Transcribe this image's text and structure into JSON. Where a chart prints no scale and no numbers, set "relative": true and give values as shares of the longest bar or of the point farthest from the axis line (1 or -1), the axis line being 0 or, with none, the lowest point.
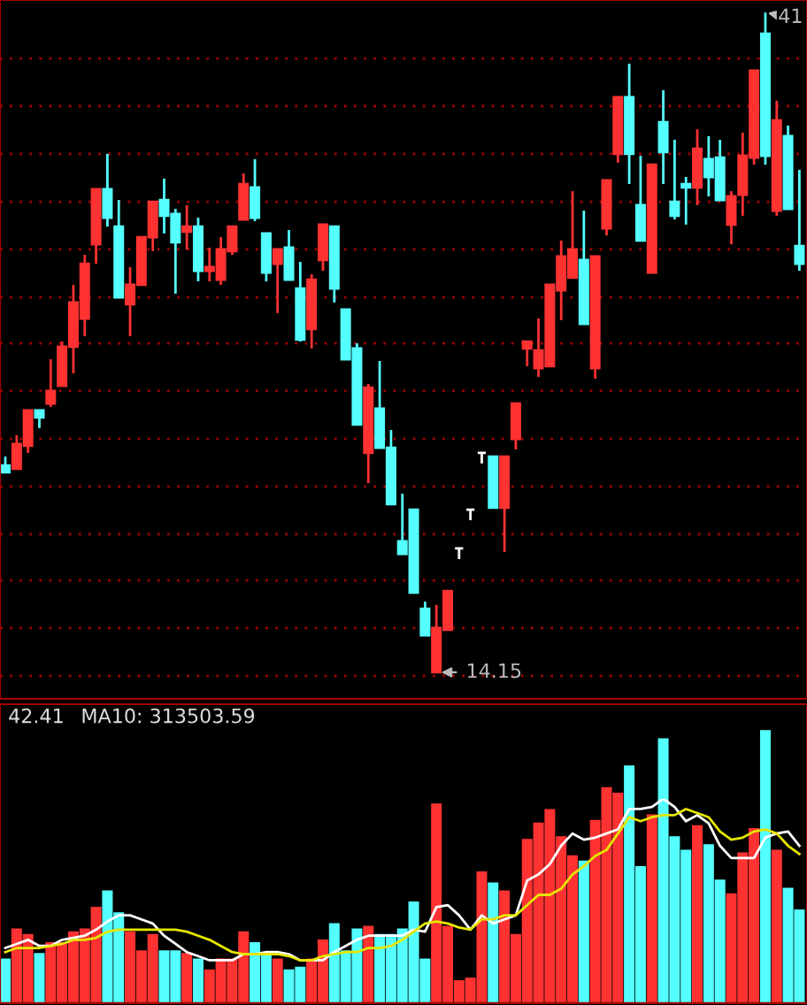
{
  "chart_data": [
    {
      "type": "candlestick",
      "categories": [
        null,
        null,
        null,
        null,
        null,
        null,
        null,
        null,
        null,
        null,
        null,
        null,
        null,
        null,
        null,
        null,
        null,
        null,
        null,
        null,
        null,
        null,
        null,
        null,
        null,
        null,
        null,
        null,
        null,
        null,
        null,
        null,
        null,
        null,
        null,
        null,
        null,
        null,
        null,
        null,
        null,
        null,
        null,
        null,
        null,
        null,
        null,
        null,
        null,
        null,
        null,
        null,
        null,
        null,
        null,
        null,
        null,
        null,
        null,
        null,
        null,
        null,
        null,
        null,
        null,
        null,
        null,
        null,
        null,
        null,
        null
      ],
      "ohlc": [
        [
          22.57,
          22.93,
          22.29,
          22.29
        ],
        [
          22.43,
          23.8,
          22.43,
          23.44
        ],
        [
          23.37,
          24.81,
          23.08,
          24.81
        ],
        [
          24.81,
          24.81,
          24.09,
          24.52
        ],
        [
          25.09,
          26.89,
          24.95,
          25.6
        ],
        [
          25.81,
          27.61,
          25.81,
          27.4
        ],
        [
          27.4,
          29.92,
          26.32,
          29.2
        ],
        [
          28.55,
          31.14,
          27.83,
          30.78
        ],
        [
          31.57,
          33.81,
          30.78,
          33.81
        ],
        [
          33.81,
          35.25,
          32.29,
          32.65
        ],
        [
          32.29,
          33.37,
          29.41,
          29.41
        ],
        [
          29.13,
          30.64,
          27.83,
          29.92
        ],
        [
          29.92,
          31.86,
          29.92,
          31.86
        ],
        [
          31.86,
          33.3,
          31.29,
          33.3
        ],
        [
          33.37,
          34.24,
          32.01,
          32.73
        ],
        [
          32.8,
          33.01,
          29.56,
          31.65
        ],
        [
          32.08,
          33.16,
          31.36,
          32.29
        ],
        [
          32.29,
          32.65,
          30.06,
          30.49
        ],
        [
          30.49,
          31.43,
          30.06,
          30.64
        ],
        [
          30.13,
          31.86,
          29.92,
          31.36
        ],
        [
          31.29,
          32.29,
          31.14,
          32.29
        ],
        [
          32.58,
          34.45,
          32.58,
          34.02
        ],
        [
          33.88,
          35.03,
          32.51,
          32.65
        ],
        [
          32.01,
          32.01,
          30.06,
          30.42
        ],
        [
          30.78,
          31.36,
          28.77,
          31.36
        ],
        [
          31.43,
          32.15,
          30.13,
          30.13
        ],
        [
          29.77,
          30.85,
          27.61,
          27.69
        ],
        [
          28.12,
          30.35,
          27.33,
          30.13
        ],
        [
          30.93,
          32.37,
          30.49,
          32.37
        ],
        [
          32.29,
          32.29,
          29.2,
          29.77
        ],
        [
          28.91,
          28.91,
          26.89,
          26.89
        ],
        [
          27.33,
          27.54,
          24.23,
          24.23
        ],
        [
          23.08,
          25.89,
          21.85,
          25.74
        ],
        [
          24.88,
          26.82,
          23.29,
          23.29
        ],
        [
          23.29,
          24.01,
          20.99,
          20.99
        ],
        [
          19.48,
          21.42,
          18.97,
          18.97
        ],
        [
          20.77,
          20.77,
          17.39,
          17.39
        ],
        [
          16.74,
          17.03,
          15.66,
          15.66
        ],
        [
          14.15,
          16.89,
          14.15,
          15.95
        ],
        [
          15.88,
          17.46,
          15.88,
          17.46
        ],
        [
          19.19,
          19.19,
          18.76,
          19.19
        ],
        [
          20.77,
          20.77,
          20.34,
          20.77
        ],
        [
          23.08,
          23.08,
          22.65,
          23.08
        ],
        [
          22.93,
          22.93,
          20.85,
          20.85
        ],
        [
          20.85,
          22.93,
          19.05,
          22.93
        ],
        [
          23.65,
          25.09,
          23.22,
          25.09
        ],
        [
          27.33,
          27.61,
          26.61,
          27.61
        ],
        [
          26.53,
          28.55,
          26.17,
          27.25
        ],
        [
          26.61,
          29.92,
          26.61,
          29.92
        ],
        [
          29.7,
          31.72,
          28.48,
          31.07
        ],
        [
          30.21,
          33.73,
          30.21,
          31.36
        ],
        [
          30.93,
          32.94,
          28.33,
          28.33
        ],
        [
          26.53,
          31.07,
          26.1,
          31.07
        ],
        [
          32.22,
          34.17,
          31.93,
          34.17
        ],
        [
          35.25,
          37.55,
          34.89,
          37.55
        ],
        [
          37.55,
          38.92,
          34.02,
          35.25
        ],
        [
          33.16,
          35.17,
          31.72,
          31.72
        ],
        [
          30.42,
          34.81,
          30.42,
          34.81
        ],
        [
          36.54,
          37.84,
          34.02,
          35.32
        ],
        [
          33.3,
          35.82,
          32.58,
          32.73
        ],
        [
          34.02,
          34.31,
          32.37,
          33.88
        ],
        [
          33.88,
          36.25,
          33.16,
          35.46
        ],
        [
          35.03,
          35.97,
          33.52,
          34.31
        ],
        [
          35.1,
          35.82,
          33.37,
          33.37
        ],
        [
          32.37,
          33.73,
          31.57,
          33.52
        ],
        [
          33.59,
          36.11,
          32.73,
          35.17
        ],
        [
          35.1,
          38.63,
          34.81,
          38.63
        ],
        [
          40.14,
          41.0,
          34.81,
          35.17
        ],
        [
          32.94,
          37.41,
          32.73,
          36.61
        ],
        [
          35.97,
          36.4,
          33.01,
          33.01
        ],
        [
          31.5,
          34.6,
          30.49,
          30.78
        ]
      ],
      "colors": [
        "#54ffff",
        "#ff3232",
        "#ff3232",
        "#54ffff",
        "#ff3232",
        "#ff3232",
        "#ff3232",
        "#ff3232",
        "#ff3232",
        "#54ffff",
        "#54ffff",
        "#ff3232",
        "#ff3232",
        "#ff3232",
        "#54ffff",
        "#54ffff",
        "#ff3232",
        "#54ffff",
        "#ff3232",
        "#ff3232",
        "#ff3232",
        "#ff3232",
        "#54ffff",
        "#54ffff",
        "#ff3232",
        "#54ffff",
        "#54ffff",
        "#ff3232",
        "#ff3232",
        "#54ffff",
        "#54ffff",
        "#54ffff",
        "#ff3232",
        "#54ffff",
        "#54ffff",
        "#54ffff",
        "#54ffff",
        "#54ffff",
        "#ff3232",
        "#ff3232",
        "#ffffff",
        "#ffffff",
        "#ffffff",
        "#54ffff",
        "#ff3232",
        "#ff3232",
        "#ff3232",
        "#ff3232",
        "#ff3232",
        "#ff3232",
        "#ff3232",
        "#54ffff",
        "#ff3232",
        "#ff3232",
        "#ff3232",
        "#54ffff",
        "#54ffff",
        "#ff3232",
        "#54ffff",
        "#54ffff",
        "#54ffff",
        "#ff3232",
        "#54ffff",
        "#54ffff",
        "#ff3232",
        "#ff3232",
        "#ff3232",
        "#54ffff",
        "#ff3232",
        "#54ffff",
        "#54ffff"
      ],
      "ylim": [
        13.07,
        41.51
      ],
      "yticks": [
        {
          "value": 39.13,
          "label": null
        },
        {
          "value": 37.19,
          "label": null
        },
        {
          "value": 35.25,
          "label": null
        },
        {
          "value": 33.3,
          "label": null
        },
        {
          "value": 31.36,
          "label": null
        },
        {
          "value": 29.41,
          "label": null
        },
        {
          "value": 27.54,
          "label": null
        },
        {
          "value": 25.6,
          "label": null
        },
        {
          "value": 23.65,
          "label": null
        },
        {
          "value": 21.71,
          "label": null
        },
        {
          "value": 19.77,
          "label": null
        },
        {
          "value": 17.89,
          "label": null
        },
        {
          "value": 15.95,
          "label": null
        },
        {
          "value": 14.01,
          "label": null
        }
      ],
      "grid": "y",
      "annotations": [
        "41",
        "14.15"
      ]
    },
    {
      "type": "bar",
      "relative": true,
      "categories": [
        null,
        null,
        null,
        null,
        null,
        null,
        null,
        null,
        null,
        null,
        null,
        null,
        null,
        null,
        null,
        null,
        null,
        null,
        null,
        null,
        null,
        null,
        null,
        null,
        null,
        null,
        null,
        null,
        null,
        null,
        null,
        null,
        null,
        null,
        null,
        null,
        null,
        null,
        null,
        null,
        null,
        null,
        null,
        null,
        null,
        null,
        null,
        null,
        null,
        null,
        null,
        null,
        null,
        null,
        null,
        null,
        null,
        null,
        null,
        null,
        null,
        null,
        null,
        null,
        null,
        null,
        null,
        null,
        null,
        null,
        null
      ],
      "series": [
        {
          "type": "bar",
          "colors": [
            "#54ffff",
            "#ff3232",
            "#ff3232",
            "#54ffff",
            "#ff3232",
            "#ff3232",
            "#ff3232",
            "#ff3232",
            "#ff3232",
            "#54ffff",
            "#54ffff",
            "#ff3232",
            "#ff3232",
            "#ff3232",
            "#54ffff",
            "#54ffff",
            "#ff3232",
            "#54ffff",
            "#ff3232",
            "#ff3232",
            "#ff3232",
            "#ff3232",
            "#54ffff",
            "#54ffff",
            "#ff3232",
            "#54ffff",
            "#54ffff",
            "#ff3232",
            "#ff3232",
            "#54ffff",
            "#54ffff",
            "#54ffff",
            "#ff3232",
            "#54ffff",
            "#54ffff",
            "#54ffff",
            "#54ffff",
            "#54ffff",
            "#ff3232",
            "#ff3232",
            "#ff3232",
            "#ff3232",
            "#ff3232",
            "#54ffff",
            "#ff3232",
            "#ff3232",
            "#ff3232",
            "#ff3232",
            "#ff3232",
            "#ff3232",
            "#ff3232",
            "#54ffff",
            "#ff3232",
            "#ff3232",
            "#ff3232",
            "#54ffff",
            "#54ffff",
            "#ff3232",
            "#54ffff",
            "#54ffff",
            "#54ffff",
            "#ff3232",
            "#54ffff",
            "#54ffff",
            "#ff3232",
            "#ff3232",
            "#ff3232",
            "#54ffff",
            "#ff3232",
            "#54ffff",
            "#54ffff"
          ],
          "values": [
            0.16,
            0.27,
            0.25,
            0.18,
            0.22,
            0.22,
            0.26,
            0.27,
            0.35,
            0.41,
            0.33,
            0.26,
            0.19,
            0.25,
            0.19,
            0.19,
            0.18,
            0.16,
            0.12,
            0.16,
            0.16,
            0.26,
            0.22,
            0.18,
            0.16,
            0.12,
            0.13,
            0.16,
            0.23,
            0.29,
            0.19,
            0.27,
            0.28,
            0.25,
            0.25,
            0.27,
            0.37,
            0.16,
            0.73,
            0.28,
            0.08,
            0.09,
            0.48,
            0.44,
            0.41,
            0.25,
            0.6,
            0.66,
            0.71,
            0.61,
            0.54,
            0.52,
            0.67,
            0.79,
            0.77,
            0.87,
            0.5,
            0.69,
            0.97,
            0.61,
            0.56,
            0.65,
            0.58,
            0.45,
            0.4,
            0.55,
            0.64,
            1,
            0.56,
            0.42,
            0.34
          ]
        }
      ]
    },
    {
      "type": "line",
      "relative": true,
      "categories": [
        null,
        null,
        null,
        null,
        null,
        null,
        null,
        null,
        null,
        null,
        null,
        null,
        null,
        null,
        null,
        null,
        null,
        null,
        null,
        null,
        null,
        null,
        null,
        null,
        null,
        null,
        null,
        null,
        null,
        null,
        null,
        null,
        null,
        null,
        null,
        null,
        null,
        null,
        null,
        null,
        null,
        null,
        null,
        null,
        null,
        null,
        null,
        null,
        null,
        null,
        null,
        null,
        null,
        null,
        null,
        null,
        null,
        null,
        null,
        null,
        null,
        null,
        null,
        null,
        null,
        null,
        null,
        null,
        null,
        null,
        null
      ],
      "series": [
        {
          "color": "#ffffff",
          "values": [
            0.27,
            0.29,
            0.31,
            0.28,
            0.28,
            0.31,
            0.32,
            0.33,
            0.36,
            0.4,
            0.43,
            0.43,
            0.41,
            0.39,
            0.33,
            0.29,
            0.25,
            0.23,
            0.21,
            0.21,
            0.21,
            0.24,
            0.24,
            0.25,
            0.25,
            0.24,
            0.21,
            0.21,
            0.21,
            0.25,
            0.28,
            0.31,
            0.33,
            0.33,
            0.33,
            0.33,
            0.36,
            0.35,
            0.47,
            0.48,
            0.43,
            0.36,
            0.43,
            0.39,
            0.41,
            0.43,
            0.6,
            0.63,
            0.68,
            0.77,
            0.83,
            0.8,
            0.81,
            0.83,
            0.85,
            0.95,
            0.95,
            0.96,
            1,
            0.96,
            0.89,
            0.92,
            0.88,
            0.77,
            0.71,
            0.71,
            0.71,
            0.81,
            0.83,
            0.84,
            0.77
          ]
        },
        {
          "color": "#e6e600",
          "values": [
            0.25,
            0.27,
            0.27,
            0.27,
            0.28,
            0.29,
            0.31,
            0.31,
            0.32,
            0.35,
            0.36,
            0.36,
            0.36,
            0.36,
            0.36,
            0.36,
            0.35,
            0.33,
            0.31,
            0.28,
            0.25,
            0.24,
            0.24,
            0.24,
            0.24,
            0.23,
            0.21,
            0.21,
            0.23,
            0.24,
            0.25,
            0.25,
            0.27,
            0.27,
            0.28,
            0.31,
            0.35,
            0.39,
            0.4,
            0.39,
            0.37,
            0.36,
            0.41,
            0.41,
            0.43,
            0.43,
            0.48,
            0.53,
            0.53,
            0.56,
            0.63,
            0.67,
            0.72,
            0.75,
            0.83,
            0.91,
            0.89,
            0.91,
            0.92,
            0.92,
            0.95,
            0.93,
            0.91,
            0.84,
            0.8,
            0.81,
            0.84,
            0.85,
            0.83,
            0.77,
            0.73
          ]
        }
      ],
      "annotations": [
        "42.41",
        "MA10: 313503.59"
      ]
    }
  ]
}
